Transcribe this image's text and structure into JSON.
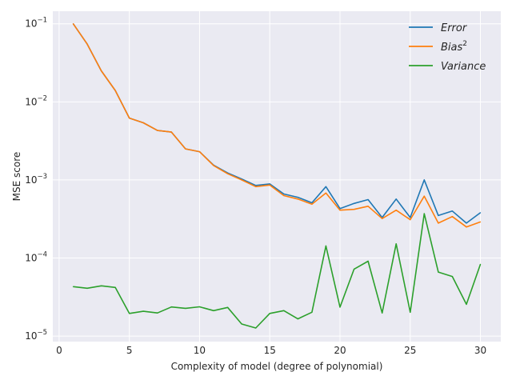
{
  "chart_data": {
    "type": "line",
    "title": "",
    "xlabel": "Complexity of model (degree of polynomial)",
    "ylabel": "MSE score",
    "xlim": [
      -0.45,
      31.45
    ],
    "ylim": [
      8.5e-06,
      0.145
    ],
    "yscale": "log",
    "grid": true,
    "legend_position": "top-right",
    "x_ticks": [
      0,
      5,
      10,
      15,
      20,
      25,
      30
    ],
    "x_tick_labels": [
      "0",
      "5",
      "10",
      "15",
      "20",
      "25",
      "30"
    ],
    "y_ticks": [
      1e-05,
      0.0001,
      0.001,
      0.01,
      0.1
    ],
    "y_tick_labels": [
      {
        "base": "10",
        "exp": "−5"
      },
      {
        "base": "10",
        "exp": "−4"
      },
      {
        "base": "10",
        "exp": "−3"
      },
      {
        "base": "10",
        "exp": "−2"
      },
      {
        "base": "10",
        "exp": "−1"
      }
    ],
    "x": [
      1,
      2,
      3,
      4,
      5,
      6,
      7,
      8,
      9,
      10,
      11,
      12,
      13,
      14,
      15,
      16,
      17,
      18,
      19,
      20,
      21,
      22,
      23,
      24,
      25,
      26,
      27,
      28,
      29,
      30
    ],
    "series": [
      {
        "name": "Error",
        "name_superscript": "",
        "color": "#1f77b4",
        "values": [
          0.1,
          0.055,
          0.025,
          0.014,
          0.0062,
          0.0054,
          0.0043,
          0.0041,
          0.0025,
          0.0023,
          0.00155,
          0.00123,
          0.00103,
          0.00085,
          0.00089,
          0.00066,
          0.0006,
          0.00051,
          0.00082,
          0.00043,
          0.0005,
          0.00056,
          0.00033,
          0.00057,
          0.00033,
          0.001,
          0.00035,
          0.0004,
          0.00028,
          0.00038
        ]
      },
      {
        "name": "Bias",
        "name_superscript": "2",
        "color": "#ff7f0e",
        "values": [
          0.1,
          0.055,
          0.025,
          0.014,
          0.0062,
          0.0054,
          0.0043,
          0.0041,
          0.0025,
          0.0023,
          0.00153,
          0.0012,
          0.001,
          0.00082,
          0.00086,
          0.00063,
          0.00057,
          0.00049,
          0.00068,
          0.00041,
          0.00042,
          0.00046,
          0.00032,
          0.00041,
          0.00031,
          0.00062,
          0.00028,
          0.00034,
          0.00025,
          0.00029
        ]
      },
      {
        "name": "Variance",
        "name_superscript": "",
        "color": "#2ca02c",
        "values": [
          4.3e-05,
          4.1e-05,
          4.4e-05,
          4.2e-05,
          1.95e-05,
          2.08e-05,
          1.98e-05,
          2.36e-05,
          2.27e-05,
          2.37e-05,
          2.12e-05,
          2.33e-05,
          1.43e-05,
          1.27e-05,
          1.95e-05,
          2.12e-05,
          1.66e-05,
          2.02e-05,
          0.000143,
          2.35e-05,
          7.2e-05,
          9.1e-05,
          1.98e-05,
          0.000152,
          2.02e-05,
          0.00037,
          6.6e-05,
          5.8e-05,
          2.55e-05,
          8.3e-05
        ]
      }
    ]
  }
}
